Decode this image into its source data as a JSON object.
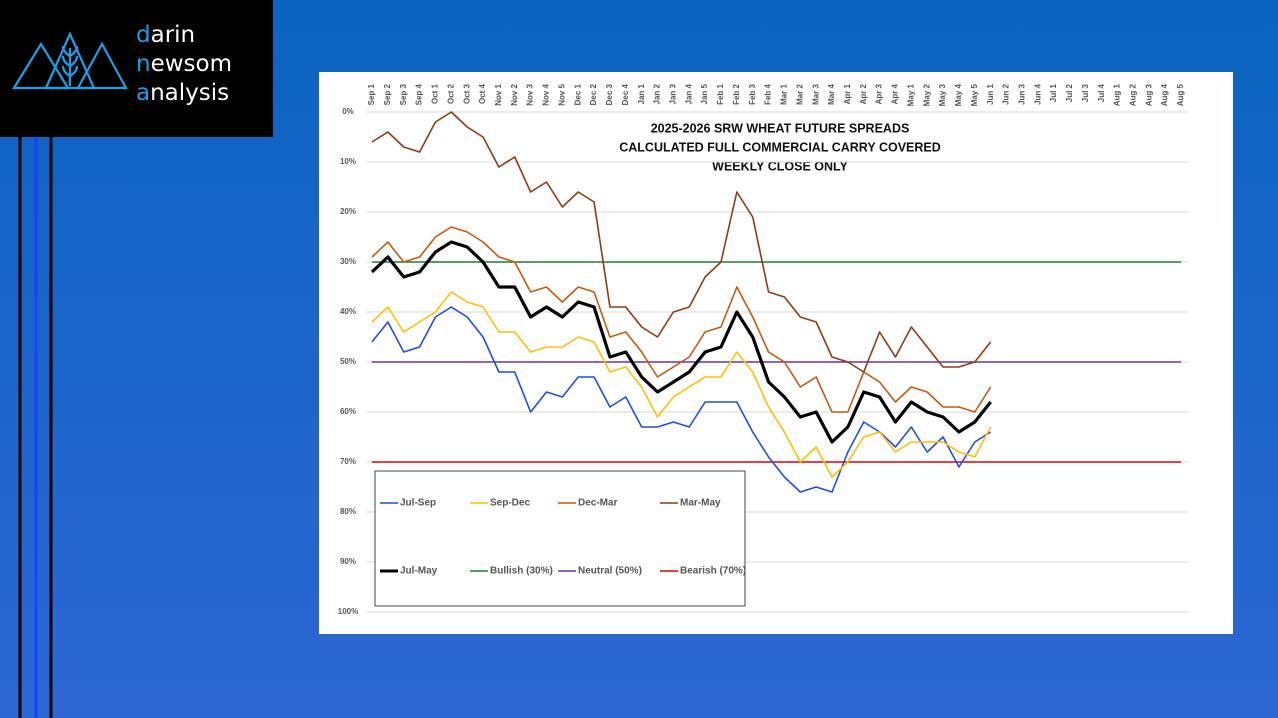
{
  "logo": [
    "darin",
    "newsom",
    "analysis"
  ],
  "chart_data": {
    "type": "line",
    "title": [
      "2025-2026 SRW WHEAT FUTURE SPREADS",
      "CALCULATED FULL COMMERCIAL CARRY COVERED",
      "WEEKLY CLOSE ONLY"
    ],
    "categories": [
      "Sep 1",
      "Sep 2",
      "Sep 3",
      "Sep 4",
      "Oct 1",
      "Oct 2",
      "Oct 3",
      "Oct 4",
      "Nov 1",
      "Nov 2",
      "Nov 3",
      "Nov 4",
      "Nov 5",
      "Dec 1",
      "Dec 2",
      "Dec 3",
      "Dec 4",
      "Jan 1",
      "Jan 2",
      "Jan 3",
      "Jan 4",
      "Jan 5",
      "Feb 1",
      "Feb 2",
      "Feb 3",
      "Feb 4",
      "Mar 1",
      "Mar 2",
      "Mar 3",
      "Mar 4",
      "Apr 1",
      "Apr 2",
      "Apr 3",
      "Apr 4",
      "May 1",
      "May 2",
      "May 3",
      "May 4",
      "May 5",
      "Jun 1",
      "Jun 2",
      "Jun 3",
      "Jun 4",
      "Jul 1",
      "Jul 2",
      "Jul 3",
      "Jul 4",
      "Aug 1",
      "Aug 2",
      "Aug 3",
      "Aug 4",
      "Aug 5"
    ],
    "series": [
      {
        "name": "Jul-Sep",
        "color": "#1f4fe0",
        "values": [
          46,
          42,
          48,
          47,
          41,
          39,
          41,
          45,
          52,
          52,
          60,
          56,
          57,
          53,
          53,
          59,
          57,
          63,
          63,
          62,
          63,
          58,
          58,
          58,
          64,
          69,
          73,
          76,
          75,
          76,
          68,
          62,
          64,
          67,
          63,
          68,
          65,
          71,
          66,
          64,
          null,
          null,
          null,
          null,
          null,
          null,
          null,
          null,
          null,
          null,
          null,
          null
        ]
      },
      {
        "name": "Sep-Dec",
        "color": "#ffc000",
        "values": [
          42,
          39,
          44,
          42,
          40,
          36,
          38,
          39,
          44,
          44,
          48,
          47,
          47,
          45,
          46,
          52,
          51,
          55,
          61,
          57,
          55,
          53,
          53,
          48,
          52,
          59,
          64,
          70,
          67,
          73,
          70,
          65,
          64,
          68,
          66,
          66,
          66,
          68,
          69,
          63,
          null,
          null,
          null,
          null,
          null,
          null,
          null,
          null,
          null,
          null,
          null,
          null
        ]
      },
      {
        "name": "Dec-Mar",
        "color": "#c55a11",
        "values": [
          29,
          26,
          30,
          29,
          25,
          23,
          24,
          26,
          29,
          30,
          36,
          35,
          38,
          35,
          36,
          45,
          44,
          48,
          53,
          51,
          49,
          44,
          43,
          35,
          41,
          48,
          50,
          55,
          53,
          60,
          60,
          52,
          54,
          58,
          55,
          56,
          59,
          59,
          60,
          55,
          null,
          null,
          null,
          null,
          null,
          null,
          null,
          null,
          null,
          null,
          null,
          null
        ]
      },
      {
        "name": "Mar-May",
        "color": "#8b3e12",
        "values": [
          6,
          4,
          7,
          8,
          2,
          0,
          3,
          5,
          11,
          9,
          16,
          14,
          19,
          16,
          18,
          39,
          39,
          43,
          45,
          40,
          39,
          33,
          30,
          16,
          21,
          36,
          37,
          41,
          42,
          49,
          50,
          52,
          44,
          49,
          43,
          47,
          51,
          51,
          50,
          46,
          null,
          null,
          null,
          null,
          null,
          null,
          null,
          null,
          null,
          null,
          null,
          null
        ]
      },
      {
        "name": "Jul-May",
        "color": "#000000",
        "values": [
          32,
          29,
          33,
          32,
          28,
          26,
          27,
          30,
          35,
          35,
          41,
          39,
          41,
          38,
          39,
          49,
          48,
          53,
          56,
          54,
          52,
          48,
          47,
          40,
          45,
          54,
          57,
          61,
          60,
          66,
          63,
          56,
          57,
          62,
          58,
          60,
          61,
          64,
          62,
          58,
          null,
          null,
          null,
          null,
          null,
          null,
          null,
          null,
          null,
          null,
          null,
          null
        ]
      }
    ],
    "reference_lines": [
      {
        "name": "Bullish (30%)",
        "value": 30,
        "color": "#1e7d3a"
      },
      {
        "name": "Neutral (50%)",
        "value": 50,
        "color": "#7030a0"
      },
      {
        "name": "Bearish (70%)",
        "value": 70,
        "color": "#e00000"
      }
    ],
    "ylim": [
      0,
      100
    ],
    "yticks": [
      {
        "value": 0,
        "label": "0%"
      },
      {
        "value": 10,
        "label": "10%"
      },
      {
        "value": 20,
        "label": "20%"
      },
      {
        "value": 30,
        "label": "30%"
      },
      {
        "value": 40,
        "label": "40%"
      },
      {
        "value": 50,
        "label": "50%"
      },
      {
        "value": 60,
        "label": "60%"
      },
      {
        "value": 70,
        "label": "70%"
      },
      {
        "value": 80,
        "label": "80%"
      },
      {
        "value": 90,
        "label": "90%"
      },
      {
        "value": 100,
        "label": "100%"
      }
    ],
    "y_inverted": true,
    "grid": true,
    "legend": "lower left"
  }
}
